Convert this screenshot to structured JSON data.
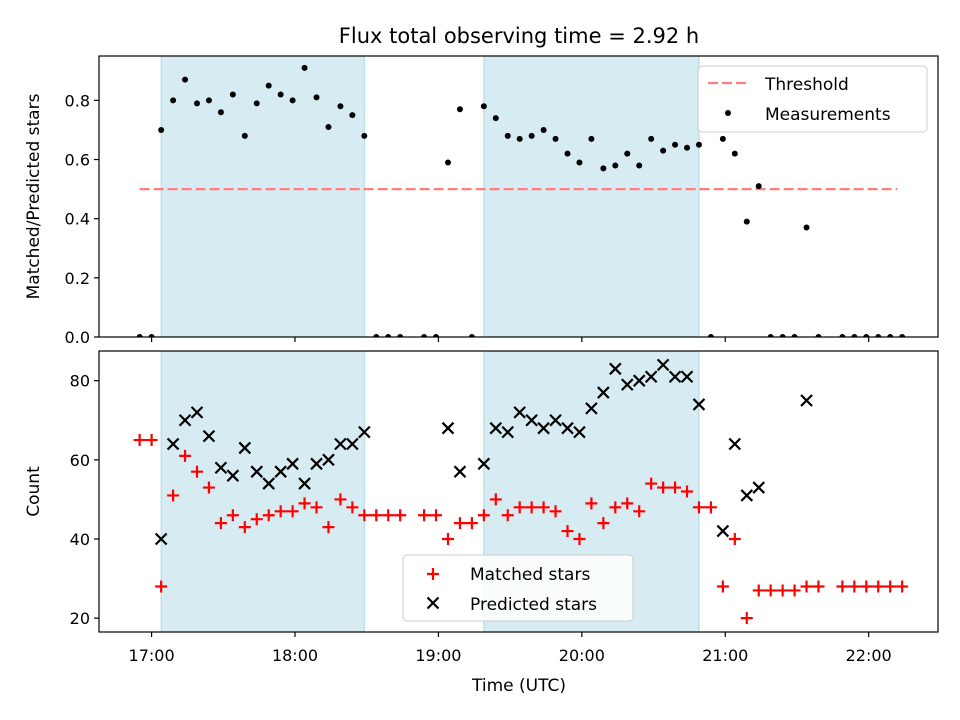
{
  "figure": {
    "title": "Flux total observing time = 2.92 h",
    "xlabel": "Time (UTC)",
    "xticks": [
      "17:00",
      "18:00",
      "19:00",
      "20:00",
      "21:00",
      "22:00"
    ]
  },
  "chart_data": [
    {
      "type": "scatter",
      "ylabel": "Matched/Predicted stars",
      "ylim": [
        0,
        0.95
      ],
      "yticks": [
        0.0,
        0.2,
        0.4,
        0.6,
        0.8
      ],
      "xrange": [
        "16:38",
        "22:29"
      ],
      "shaded_intervals": [
        [
          "17:04",
          "18:29"
        ],
        [
          "19:19",
          "20:49"
        ]
      ],
      "threshold": {
        "name": "Threshold",
        "value": 0.5,
        "x_range": [
          "16:55",
          "22:12"
        ],
        "color": "#ff7f7f"
      },
      "series": [
        {
          "name": "Measurements",
          "color": "#000000",
          "points": [
            [
              "16:55",
              0.0
            ],
            [
              "17:00",
              0.0
            ],
            [
              "17:04",
              0.7
            ],
            [
              "17:09",
              0.8
            ],
            [
              "17:14",
              0.87
            ],
            [
              "17:19",
              0.79
            ],
            [
              "17:24",
              0.8
            ],
            [
              "17:29",
              0.76
            ],
            [
              "17:34",
              0.82
            ],
            [
              "17:39",
              0.68
            ],
            [
              "17:44",
              0.79
            ],
            [
              "17:49",
              0.85
            ],
            [
              "17:54",
              0.82
            ],
            [
              "17:59",
              0.8
            ],
            [
              "18:04",
              0.91
            ],
            [
              "18:09",
              0.81
            ],
            [
              "18:14",
              0.71
            ],
            [
              "18:19",
              0.78
            ],
            [
              "18:24",
              0.75
            ],
            [
              "18:29",
              0.68
            ],
            [
              "18:34",
              0.0
            ],
            [
              "18:39",
              0.0
            ],
            [
              "18:44",
              0.0
            ],
            [
              "18:54",
              0.0
            ],
            [
              "18:59",
              0.0
            ],
            [
              "19:04",
              0.59
            ],
            [
              "19:09",
              0.77
            ],
            [
              "19:14",
              0.0
            ],
            [
              "19:19",
              0.78
            ],
            [
              "19:24",
              0.74
            ],
            [
              "19:29",
              0.68
            ],
            [
              "19:34",
              0.67
            ],
            [
              "19:39",
              0.68
            ],
            [
              "19:44",
              0.7
            ],
            [
              "19:49",
              0.67
            ],
            [
              "19:54",
              0.62
            ],
            [
              "19:59",
              0.59
            ],
            [
              "20:04",
              0.67
            ],
            [
              "20:09",
              0.57
            ],
            [
              "20:14",
              0.58
            ],
            [
              "20:19",
              0.62
            ],
            [
              "20:24",
              0.58
            ],
            [
              "20:29",
              0.67
            ],
            [
              "20:34",
              0.63
            ],
            [
              "20:39",
              0.65
            ],
            [
              "20:44",
              0.64
            ],
            [
              "20:49",
              0.65
            ],
            [
              "20:54",
              0.0
            ],
            [
              "20:59",
              0.67
            ],
            [
              "21:04",
              0.62
            ],
            [
              "21:09",
              0.39
            ],
            [
              "21:14",
              0.51
            ],
            [
              "21:19",
              0.0
            ],
            [
              "21:24",
              0.0
            ],
            [
              "21:29",
              0.0
            ],
            [
              "21:34",
              0.37
            ],
            [
              "21:39",
              0.0
            ],
            [
              "21:49",
              0.0
            ],
            [
              "21:54",
              0.0
            ],
            [
              "21:59",
              0.0
            ],
            [
              "22:04",
              0.0
            ],
            [
              "22:09",
              0.0
            ],
            [
              "22:14",
              0.0
            ]
          ]
        }
      ],
      "legend": {
        "placement": "upper right",
        "entries": [
          "Threshold",
          "Measurements"
        ]
      }
    },
    {
      "type": "scatter",
      "ylabel": "Count",
      "ylim": [
        16.5,
        87.5
      ],
      "yticks": [
        20,
        40,
        60,
        80
      ],
      "xrange": [
        "16:38",
        "22:29"
      ],
      "shaded_intervals": [
        [
          "17:04",
          "18:29"
        ],
        [
          "19:19",
          "20:49"
        ]
      ],
      "series": [
        {
          "name": "Matched stars",
          "marker": "plus",
          "color": "#ff0000",
          "points": [
            [
              "16:55",
              65
            ],
            [
              "17:00",
              65
            ],
            [
              "17:04",
              28
            ],
            [
              "17:09",
              51
            ],
            [
              "17:14",
              61
            ],
            [
              "17:19",
              57
            ],
            [
              "17:24",
              53
            ],
            [
              "17:29",
              44
            ],
            [
              "17:34",
              46
            ],
            [
              "17:39",
              43
            ],
            [
              "17:44",
              45
            ],
            [
              "17:49",
              46
            ],
            [
              "17:54",
              47
            ],
            [
              "17:59",
              47
            ],
            [
              "18:04",
              49
            ],
            [
              "18:09",
              48
            ],
            [
              "18:14",
              43
            ],
            [
              "18:19",
              50
            ],
            [
              "18:24",
              48
            ],
            [
              "18:29",
              46
            ],
            [
              "18:34",
              46
            ],
            [
              "18:39",
              46
            ],
            [
              "18:44",
              46
            ],
            [
              "18:54",
              46
            ],
            [
              "18:59",
              46
            ],
            [
              "19:04",
              40
            ],
            [
              "19:09",
              44
            ],
            [
              "19:14",
              44
            ],
            [
              "19:19",
              46
            ],
            [
              "19:24",
              50
            ],
            [
              "19:29",
              46
            ],
            [
              "19:34",
              48
            ],
            [
              "19:39",
              48
            ],
            [
              "19:44",
              48
            ],
            [
              "19:49",
              47
            ],
            [
              "19:54",
              42
            ],
            [
              "19:59",
              40
            ],
            [
              "20:04",
              49
            ],
            [
              "20:09",
              44
            ],
            [
              "20:14",
              48
            ],
            [
              "20:19",
              49
            ],
            [
              "20:24",
              47
            ],
            [
              "20:29",
              54
            ],
            [
              "20:34",
              53
            ],
            [
              "20:39",
              53
            ],
            [
              "20:44",
              52
            ],
            [
              "20:49",
              48
            ],
            [
              "20:54",
              48
            ],
            [
              "20:59",
              28
            ],
            [
              "21:04",
              40
            ],
            [
              "21:09",
              20
            ],
            [
              "21:14",
              27
            ],
            [
              "21:19",
              27
            ],
            [
              "21:24",
              27
            ],
            [
              "21:29",
              27
            ],
            [
              "21:34",
              28
            ],
            [
              "21:39",
              28
            ],
            [
              "21:49",
              28
            ],
            [
              "21:54",
              28
            ],
            [
              "21:59",
              28
            ],
            [
              "22:04",
              28
            ],
            [
              "22:09",
              28
            ],
            [
              "22:14",
              28
            ]
          ]
        },
        {
          "name": "Predicted stars",
          "marker": "x",
          "color": "#000000",
          "points": [
            [
              "17:04",
              40
            ],
            [
              "17:09",
              64
            ],
            [
              "17:14",
              70
            ],
            [
              "17:19",
              72
            ],
            [
              "17:24",
              66
            ],
            [
              "17:29",
              58
            ],
            [
              "17:34",
              56
            ],
            [
              "17:39",
              63
            ],
            [
              "17:44",
              57
            ],
            [
              "17:49",
              54
            ],
            [
              "17:54",
              57
            ],
            [
              "17:59",
              59
            ],
            [
              "18:04",
              54
            ],
            [
              "18:09",
              59
            ],
            [
              "18:14",
              60
            ],
            [
              "18:19",
              64
            ],
            [
              "18:24",
              64
            ],
            [
              "18:29",
              67
            ],
            [
              "19:04",
              68
            ],
            [
              "19:09",
              57
            ],
            [
              "19:19",
              59
            ],
            [
              "19:24",
              68
            ],
            [
              "19:29",
              67
            ],
            [
              "19:34",
              72
            ],
            [
              "19:39",
              70
            ],
            [
              "19:44",
              68
            ],
            [
              "19:49",
              70
            ],
            [
              "19:54",
              68
            ],
            [
              "19:59",
              67
            ],
            [
              "20:04",
              73
            ],
            [
              "20:09",
              77
            ],
            [
              "20:14",
              83
            ],
            [
              "20:19",
              79
            ],
            [
              "20:24",
              80
            ],
            [
              "20:29",
              81
            ],
            [
              "20:34",
              84
            ],
            [
              "20:39",
              81
            ],
            [
              "20:44",
              81
            ],
            [
              "20:49",
              74
            ],
            [
              "20:59",
              42
            ],
            [
              "21:04",
              64
            ],
            [
              "21:09",
              51
            ],
            [
              "21:14",
              53
            ],
            [
              "21:34",
              75
            ]
          ]
        }
      ],
      "legend": {
        "placement": "lower center",
        "entries": [
          "Matched stars",
          "Predicted stars"
        ]
      }
    }
  ]
}
